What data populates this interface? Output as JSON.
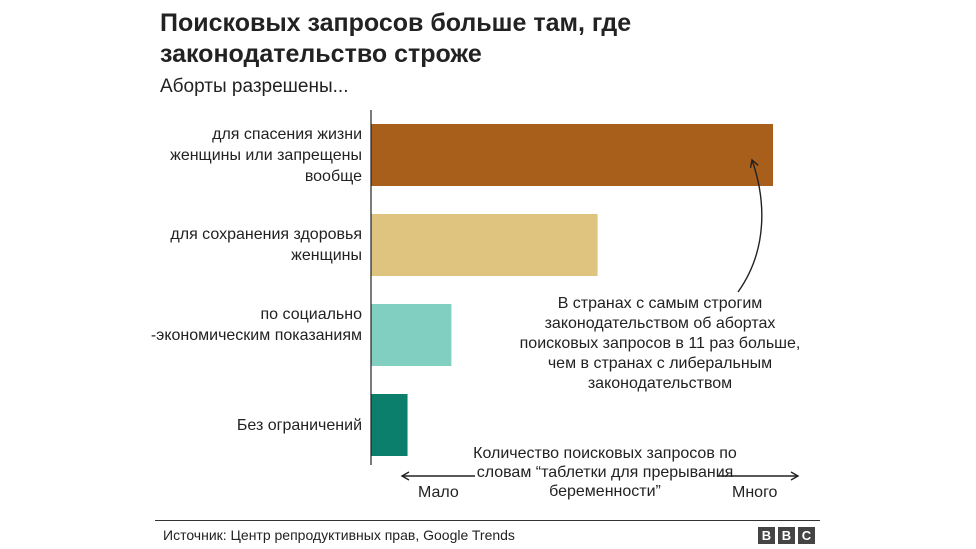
{
  "title": "Поисковых запросов больше там, где законодательство строже",
  "subtitle": "Аборты разрешены...",
  "annotation": "В странах с самым строгим законодательством об абортах поисковых запросов в 11 раз больше, чем в странах с либеральным законодательством",
  "axis": {
    "caption": "Количество поисковых запросов по словам “таблетки для прерывания беременности”",
    "low_label": "Мало",
    "high_label": "Много"
  },
  "source": "Источник: Центр репродуктивных прав, Google Trends",
  "logo": [
    "B",
    "B",
    "C"
  ],
  "colors": {
    "bar_1": "#a85f1c",
    "bar_2": "#dfc480",
    "bar_3": "#80cfc0",
    "bar_4": "#0c7f6c",
    "text": "#222222"
  },
  "chart_data": {
    "type": "bar",
    "orientation": "horizontal",
    "title": "Поисковых запросов больше там, где законодательство строже",
    "subtitle": "Аборты разрешены...",
    "categories": [
      "для спасения жизни женщины или запрещены вообще",
      "для сохранения здоровья женщины",
      "по социально -экономическим показаниям",
      "Без ограничений"
    ],
    "values": [
      11,
      6.2,
      2.2,
      1
    ],
    "value_unit": "relative search volume (Без ограничений = 1)",
    "xlim": [
      0,
      11
    ],
    "grid": false,
    "legend": "none"
  }
}
